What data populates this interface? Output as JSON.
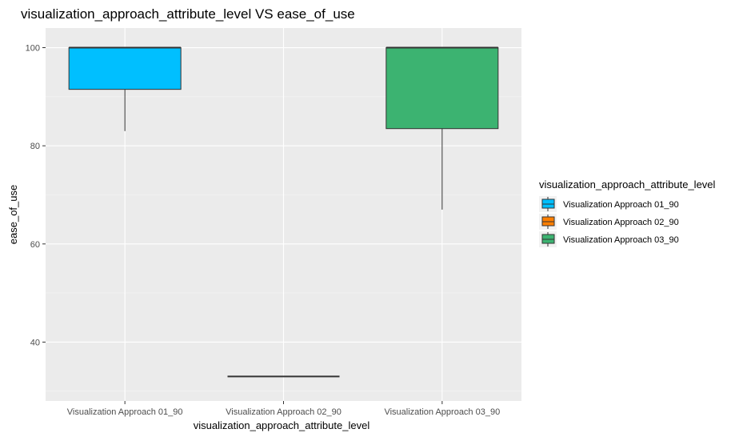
{
  "chart_data": {
    "type": "boxplot",
    "title": "visualization_approach_attribute_level VS ease_of_use",
    "xlabel": "visualization_approach_attribute_level",
    "ylabel": "ease_of_use",
    "categories": [
      "Visualization Approach 01_90",
      "Visualization Approach 02_90",
      "Visualization Approach 03_90"
    ],
    "y_ticks": [
      40,
      60,
      80,
      100
    ],
    "y_range": [
      28,
      104
    ],
    "grid": true,
    "legend": {
      "title": "visualization_approach_attribute_level",
      "position": "right",
      "entries": [
        "Visualization Approach 01_90",
        "Visualization Approach 02_90",
        "Visualization Approach 03_90"
      ]
    },
    "series": [
      {
        "name": "Visualization Approach 01_90",
        "color": "#00bfff",
        "min": 83,
        "q1": 91.5,
        "median": 100,
        "q3": 100,
        "max": 100
      },
      {
        "name": "Visualization Approach 02_90",
        "color": "#ff7f00",
        "min": 33,
        "q1": 33,
        "median": 33,
        "q3": 33,
        "max": 33
      },
      {
        "name": "Visualization Approach 03_90",
        "color": "#3cb371",
        "min": 67,
        "q1": 83.5,
        "median": 100,
        "q3": 100,
        "max": 100
      }
    ]
  }
}
